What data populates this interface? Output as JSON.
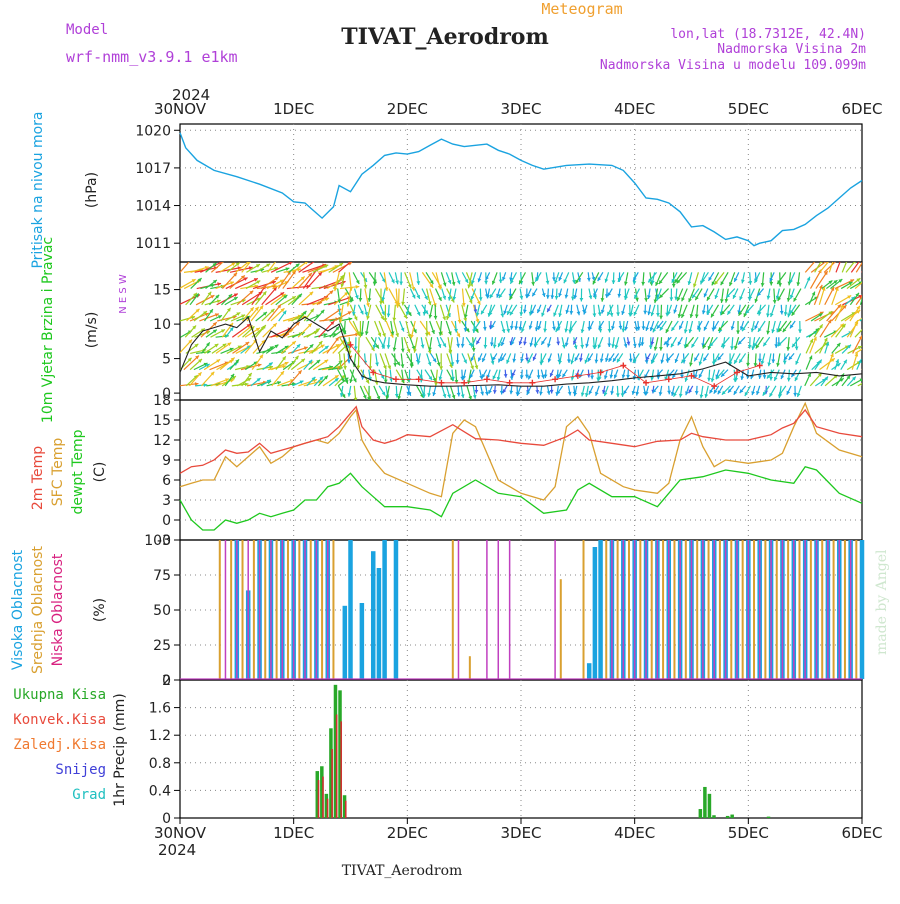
{
  "header": {
    "model_label": "Model",
    "model_name": "wrf-nmm_v3.9.1  e1km",
    "title": "TIVAT_Aerodrom",
    "subtitle": "Meteogram",
    "coords": "lon,lat (18.7312E, 42.4N)",
    "elevation": "Nadmorska Visina 2m",
    "model_elevation": "Nadmorska Visina u modelu 109.099m",
    "footer_title": "TIVAT_Aerodrom",
    "credit": "made by Angel",
    "year_top": "2024",
    "year_bottom": "2024"
  },
  "colors": {
    "pressure": "#1aa3e0",
    "wind_speed": "#222222",
    "wind_gust": "#e8322c",
    "temp2m": "#e84a3c",
    "sfc_temp": "#d9a030",
    "dewpt": "#1ec81e",
    "high_cloud": "#1aa3e0",
    "mid_cloud": "#d9a030",
    "low_cloud": "#c040c0",
    "total_precip": "#28a828",
    "conv_precip": "#d03030",
    "snow_label": "#4040d8",
    "grad_label": "#20c0c0",
    "purple_label": "#b040d8",
    "orange_label": "#f0a030",
    "cyan_label": "#1aa3e0",
    "pink_label": "#d8207f"
  },
  "chart_data": [
    {
      "type": "line",
      "panel": "pressure",
      "title": "Pritisak na nivou mora",
      "ylabel": "(hPa)",
      "ylim": [
        1009.5,
        1020.5
      ],
      "yticks": [
        "1020",
        "1017",
        "1014",
        "1011"
      ],
      "xlim": [
        0,
        6
      ],
      "xticks": [
        "30NOV",
        "1DEC",
        "2DEC",
        "3DEC",
        "4DEC",
        "5DEC",
        "6DEC"
      ],
      "grid": true,
      "series": [
        {
          "x": [
            0,
            0.05,
            0.15,
            0.3,
            0.5,
            0.7,
            0.9,
            1.0,
            1.1,
            1.15,
            1.25,
            1.35,
            1.4,
            1.5,
            1.6,
            1.7,
            1.8,
            1.9,
            2.0,
            2.1,
            2.2,
            2.3,
            2.4,
            2.5,
            2.6,
            2.7,
            2.8,
            2.9,
            3.0,
            3.1,
            3.2,
            3.4,
            3.6,
            3.8,
            3.9,
            4.0,
            4.1,
            4.2,
            4.3,
            4.4,
            4.5,
            4.6,
            4.7,
            4.8,
            4.9,
            5.0,
            5.05,
            5.1,
            5.2,
            5.3,
            5.4,
            5.5,
            5.6,
            5.7,
            5.8,
            5.9,
            6.0
          ],
          "values": [
            1019.8,
            1018.6,
            1017.6,
            1016.8,
            1016.3,
            1015.7,
            1015.0,
            1014.3,
            1014.2,
            1013.8,
            1013.0,
            1013.9,
            1015.6,
            1015.1,
            1016.5,
            1017.2,
            1018.0,
            1018.2,
            1018.1,
            1018.3,
            1018.8,
            1019.3,
            1018.9,
            1018.7,
            1018.8,
            1018.9,
            1018.4,
            1018.1,
            1017.6,
            1017.2,
            1016.9,
            1017.2,
            1017.3,
            1017.2,
            1016.8,
            1015.8,
            1014.6,
            1014.5,
            1014.2,
            1013.5,
            1012.3,
            1012.4,
            1011.9,
            1011.3,
            1011.5,
            1011.2,
            1010.8,
            1011.0,
            1011.2,
            1012.0,
            1012.1,
            1012.5,
            1013.2,
            1013.8,
            1014.6,
            1015.4,
            1016.0
          ]
        }
      ]
    },
    {
      "type": "line",
      "panel": "wind",
      "title": "10m Vjetar Brzina i Pravac",
      "ylabel": "(m/s)",
      "ylim": [
        -1,
        19
      ],
      "yticks": [
        "15",
        "10",
        "5",
        "0"
      ],
      "xlim": [
        0,
        6
      ],
      "compass": "N E S W",
      "series": [
        {
          "name": "speed",
          "x": [
            0,
            0.1,
            0.2,
            0.3,
            0.4,
            0.5,
            0.6,
            0.7,
            0.8,
            0.9,
            1.0,
            1.1,
            1.2,
            1.3,
            1.4,
            1.5,
            1.6,
            1.7,
            1.8,
            2.0,
            2.2,
            2.4,
            2.6,
            2.8,
            3.0,
            3.2,
            3.4,
            3.6,
            3.8,
            4.0,
            4.2,
            4.4,
            4.6,
            4.8,
            5.0,
            5.2,
            5.4,
            5.6,
            5.8,
            6.0
          ],
          "values": [
            3,
            7,
            9,
            9.5,
            10,
            9.5,
            11,
            6,
            9,
            8,
            10,
            11,
            10,
            9,
            10,
            5,
            2.5,
            1.8,
            1.5,
            1.2,
            1.0,
            1.0,
            1.1,
            1.2,
            1.0,
            1.0,
            1.3,
            1.5,
            1.8,
            2.2,
            2.5,
            2.8,
            3.5,
            4.5,
            2.5,
            3,
            2.8,
            3,
            2.5,
            2.8
          ]
        },
        {
          "name": "gust",
          "x": [
            1.5,
            1.7,
            1.9,
            2.1,
            2.3,
            2.5,
            2.7,
            2.9,
            3.1,
            3.3,
            3.5,
            3.7,
            3.9,
            4.1,
            4.3,
            4.5,
            4.7,
            4.9,
            5.1
          ],
          "values": [
            7,
            3,
            2,
            2,
            1.5,
            1.5,
            2,
            1.5,
            1.5,
            2,
            2.5,
            3,
            4,
            1.5,
            2,
            2.5,
            1,
            3,
            4
          ]
        }
      ],
      "arrow_bands": [
        {
          "x0": 0.0,
          "x1": 1.4,
          "dir": 60,
          "speed": 10
        },
        {
          "x0": 1.4,
          "x1": 2.6,
          "dir": 170,
          "speed": 7
        },
        {
          "x0": 2.6,
          "x1": 4.2,
          "dir": 190,
          "speed": 4
        },
        {
          "x0": 4.2,
          "x1": 5.5,
          "dir": 200,
          "speed": 5
        },
        {
          "x0": 5.5,
          "x1": 6.0,
          "dir": 40,
          "speed": 9
        }
      ]
    },
    {
      "type": "line",
      "panel": "temperature",
      "ylabel": "(C)",
      "labels": [
        "2m Temp",
        "SFC Temp",
        "dewpt Temp"
      ],
      "ylim": [
        -3,
        18
      ],
      "yticks": [
        "18",
        "15",
        "12",
        "9",
        "6",
        "3",
        "0",
        "-3"
      ],
      "xlim": [
        0,
        6
      ],
      "series": [
        {
          "name": "2m Temp",
          "x": [
            0,
            0.1,
            0.2,
            0.3,
            0.4,
            0.5,
            0.6,
            0.7,
            0.8,
            0.9,
            1.0,
            1.1,
            1.2,
            1.3,
            1.4,
            1.5,
            1.55,
            1.6,
            1.7,
            1.8,
            1.9,
            2.0,
            2.2,
            2.4,
            2.6,
            2.8,
            3.0,
            3.2,
            3.4,
            3.5,
            3.6,
            3.8,
            4.0,
            4.2,
            4.4,
            4.5,
            4.6,
            4.8,
            5.0,
            5.2,
            5.3,
            5.4,
            5.5,
            5.6,
            5.8,
            6.0
          ],
          "values": [
            7,
            8,
            8.2,
            9,
            10.5,
            10,
            10.2,
            11.5,
            10,
            10.5,
            11,
            11.5,
            12,
            12.5,
            14,
            16,
            17,
            14,
            12,
            11.5,
            12,
            12.8,
            12.5,
            14.3,
            12.2,
            12,
            11.5,
            11.2,
            12.5,
            13.5,
            12,
            11.5,
            11,
            11.8,
            12,
            13,
            12.5,
            12,
            12,
            12.8,
            13.8,
            14.5,
            16.5,
            14,
            13,
            12.5
          ]
        },
        {
          "name": "SFC Temp",
          "x": [
            0,
            0.1,
            0.2,
            0.3,
            0.4,
            0.5,
            0.6,
            0.7,
            0.8,
            0.9,
            1.0,
            1.1,
            1.2,
            1.3,
            1.4,
            1.5,
            1.55,
            1.6,
            1.7,
            1.8,
            2.0,
            2.2,
            2.3,
            2.4,
            2.5,
            2.6,
            2.7,
            2.8,
            3.0,
            3.2,
            3.3,
            3.4,
            3.5,
            3.6,
            3.7,
            3.9,
            4.0,
            4.2,
            4.3,
            4.4,
            4.5,
            4.6,
            4.7,
            4.8,
            5.0,
            5.2,
            5.3,
            5.4,
            5.5,
            5.6,
            5.8,
            6.0
          ],
          "values": [
            5,
            5.5,
            6,
            6,
            9.5,
            8,
            9.5,
            11,
            8.5,
            9.5,
            11,
            11.5,
            12,
            11.5,
            13,
            15.5,
            16.5,
            12,
            9,
            7,
            5.5,
            4,
            3.5,
            13,
            15,
            14,
            10,
            6,
            4,
            3,
            5,
            14,
            15.5,
            13,
            7,
            5,
            4.5,
            4,
            5.5,
            12,
            15.5,
            11,
            8,
            9,
            8.5,
            9,
            10,
            14,
            17.5,
            13,
            10.5,
            9.5
          ]
        },
        {
          "name": "dewpt Temp",
          "x": [
            0,
            0.1,
            0.2,
            0.3,
            0.4,
            0.5,
            0.6,
            0.7,
            0.8,
            0.9,
            1.0,
            1.1,
            1.2,
            1.3,
            1.4,
            1.5,
            1.6,
            1.7,
            1.8,
            2.0,
            2.2,
            2.3,
            2.4,
            2.6,
            2.8,
            3.0,
            3.2,
            3.4,
            3.5,
            3.6,
            3.8,
            4.0,
            4.2,
            4.4,
            4.6,
            4.8,
            5.0,
            5.2,
            5.4,
            5.5,
            5.6,
            5.8,
            6.0
          ],
          "values": [
            3,
            0,
            -1.5,
            -1.5,
            0,
            -0.5,
            0,
            1,
            0.5,
            1,
            1.5,
            3,
            3,
            5,
            5.5,
            7,
            5,
            3.5,
            2,
            2,
            1.5,
            0.5,
            4,
            6,
            4,
            3.5,
            1,
            1.5,
            4.5,
            5.5,
            3.5,
            3.5,
            2,
            6,
            6.5,
            7.5,
            7,
            6,
            5.5,
            8,
            7.5,
            4,
            2.5
          ]
        }
      ]
    },
    {
      "type": "bar",
      "panel": "cloud",
      "ylabel": "(%)",
      "labels": [
        "Visoka Oblacnost",
        "Srednja Oblacnost",
        "Niska Oblacnost"
      ],
      "ylim": [
        0,
        100
      ],
      "yticks": [
        "100",
        "75",
        "50",
        "25",
        "0"
      ],
      "xlim": [
        0,
        6
      ],
      "series": [
        {
          "name": "Visoka Oblacnost",
          "x": [
            0.5,
            0.6,
            0.7,
            0.8,
            0.9,
            1.0,
            1.1,
            1.2,
            1.3,
            1.45,
            1.5,
            1.6,
            1.7,
            1.75,
            1.8,
            1.9,
            3.6,
            3.65,
            3.7,
            3.8,
            3.9,
            4.0,
            4.1,
            4.2,
            4.3,
            4.4,
            4.5,
            4.6,
            4.7,
            4.8,
            4.9,
            5.0,
            5.1,
            5.2,
            5.3,
            5.4,
            5.5,
            5.6,
            5.7,
            5.8,
            5.9,
            6.0
          ],
          "values": [
            100,
            64,
            100,
            100,
            100,
            100,
            100,
            100,
            100,
            53,
            100,
            55,
            92,
            80,
            100,
            100,
            12,
            95,
            100,
            100,
            100,
            100,
            100,
            100,
            100,
            100,
            100,
            100,
            100,
            100,
            100,
            100,
            100,
            100,
            100,
            100,
            100,
            100,
            100,
            100,
            100,
            100
          ]
        },
        {
          "name": "Srednja Oblacnost",
          "x": [
            0.35,
            0.45,
            0.55,
            0.65,
            0.75,
            0.85,
            0.95,
            1.05,
            1.15,
            1.25,
            1.35,
            2.4,
            2.55,
            3.35,
            3.55,
            3.75,
            3.85,
            3.95,
            4.05,
            4.15,
            4.25,
            4.35,
            4.45,
            4.55,
            4.65,
            4.75,
            4.85,
            4.95,
            5.05,
            5.15,
            5.25,
            5.35,
            5.45,
            5.55,
            5.65,
            5.75,
            5.85,
            5.95
          ],
          "values": [
            100,
            100,
            100,
            100,
            100,
            100,
            100,
            100,
            100,
            100,
            100,
            100,
            17,
            72,
            100,
            100,
            100,
            100,
            100,
            100,
            100,
            100,
            100,
            100,
            100,
            100,
            100,
            100,
            100,
            100,
            100,
            100,
            100,
            100,
            100,
            100,
            100,
            100
          ]
        },
        {
          "name": "Niska Oblacnost",
          "x": [
            0.4,
            0.5,
            0.6,
            0.7,
            0.8,
            0.9,
            1.0,
            1.1,
            1.2,
            1.3,
            2.45,
            2.7,
            2.8,
            2.9,
            3.3,
            3.8,
            3.9,
            4.0,
            4.1,
            4.2,
            4.3,
            4.4,
            4.5,
            4.6,
            4.7,
            4.8,
            4.9,
            5.0,
            5.1,
            5.2,
            5.3,
            5.4,
            5.5,
            5.6,
            5.7,
            5.8,
            5.9
          ],
          "values": [
            100,
            100,
            100,
            100,
            100,
            100,
            100,
            100,
            100,
            100,
            100,
            100,
            100,
            100,
            100,
            100,
            100,
            100,
            100,
            100,
            100,
            100,
            100,
            100,
            100,
            100,
            100,
            100,
            100,
            100,
            100,
            100,
            100,
            100,
            100,
            100,
            100
          ]
        }
      ]
    },
    {
      "type": "bar",
      "panel": "precip",
      "ylabel": "1hr Precip (mm)",
      "labels": [
        "Ukupna Kisa",
        "Konvek.Kisa",
        "Zaledj.Kisa",
        "Snijeg",
        "Grad"
      ],
      "ylim": [
        0,
        2
      ],
      "yticks": [
        "2",
        "1.6",
        "1.2",
        "0.8",
        "0.4",
        "0"
      ],
      "xlim": [
        0,
        6
      ],
      "xticks": [
        "30NOV",
        "1DEC",
        "2DEC",
        "3DEC",
        "4DEC",
        "5DEC",
        "6DEC"
      ],
      "series": [
        {
          "name": "Ukupna Kisa",
          "x": [
            1.21,
            1.25,
            1.29,
            1.33,
            1.37,
            1.41,
            1.45,
            4.58,
            4.62,
            4.66,
            4.7,
            4.82,
            4.86,
            5.18
          ],
          "values": [
            0.68,
            0.75,
            0.35,
            1.3,
            1.93,
            1.85,
            0.33,
            0.13,
            0.45,
            0.35,
            0.04,
            0.03,
            0.05,
            0.02
          ]
        },
        {
          "name": "Konvek.Kisa",
          "x": [
            1.22,
            1.26,
            1.3,
            1.34,
            1.38,
            1.42,
            1.46
          ],
          "values": [
            0.55,
            0.6,
            0.28,
            1.0,
            1.5,
            1.4,
            0.25
          ]
        }
      ]
    }
  ]
}
